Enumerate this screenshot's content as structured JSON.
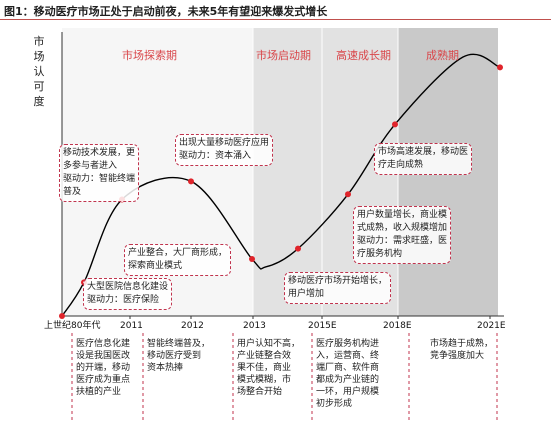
{
  "title": "图1：移动医疗市场正处于启动前夜，未来5年有望迎来爆发式增长",
  "colors": {
    "curve": "#000000",
    "marker": "#e0242b",
    "accent": "#c0334d",
    "stage_text": "#d9464a",
    "band_light": "#f2f2f2",
    "band_mid": "#e2e2e2",
    "band_dark": "#c9c9c9"
  },
  "chart_data": {
    "type": "line",
    "ylabel": "市场认可度",
    "x_ticks": [
      "上世纪80年代",
      "2011",
      "2012",
      "2013",
      "2015E",
      "2018E",
      "2021E"
    ],
    "stages": [
      {
        "name": "市场探索期",
        "from": "上世纪80年代",
        "to": "2013"
      },
      {
        "name": "市场启动期",
        "from": "2013",
        "to": "2015E"
      },
      {
        "name": "高速成长期",
        "from": "2015E",
        "to": "2018E"
      },
      {
        "name": "成熟期",
        "from": "2018E",
        "to": "2021E"
      }
    ],
    "key_points": [
      {
        "label": "上世纪80年代",
        "level": 0.0
      },
      {
        "label": "大型医院信息化建设",
        "level": 0.13
      },
      {
        "label": "移动技术发展",
        "level": 0.45
      },
      {
        "label": "2012",
        "level": 0.52
      },
      {
        "label": "产业整合",
        "level": 0.22
      },
      {
        "label": "2013",
        "level": 0.19
      },
      {
        "label": "2015E",
        "level": 0.26
      },
      {
        "label": "用户数量增长",
        "level": 0.47
      },
      {
        "label": "市场高速发展",
        "level": 0.74
      },
      {
        "label": "2021E 峰值",
        "level": 1.0
      },
      {
        "label": "2021E",
        "level": 0.96
      }
    ]
  },
  "annotations": [
    "大型医院信息化建设\n驱动力：医疗保险",
    "移动技术发展，更\n多参与者进入\n驱动力：智能终端\n普及",
    "出现大量移动医疗应用\n驱动力：资本涌入",
    "产业整合，大厂商形成，\n探索商业模式",
    "移动医疗市场开始增长，\n用户增加",
    "用户数量增长，商业模\n式成熟，收入规模增加\n驱动力：需求旺盛，医\n疗服务机构",
    "市场高速发展，移动医\n疗走向成熟"
  ],
  "bottom_notes": [
    "医疗信息化建\n设是我国医改\n的开端，移动\n医疗成为重点\n扶植的产业",
    "智能终端普及，\n移动医疗受到\n资本热捧",
    "用户认知不高，\n产业链整合效\n果不佳，商业\n模式模糊，市\n场整合开始",
    "医疗服务机构进\n入，运营商、终\n端厂商、软件商\n都成为产业链的\n一环，用户规模\n初步形成",
    "市场趋于成熟，\n竞争强度加大"
  ]
}
